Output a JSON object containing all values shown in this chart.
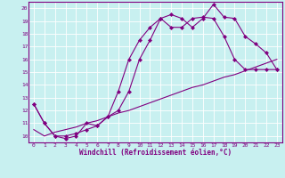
{
  "line1_x": [
    0,
    1,
    2,
    3,
    4,
    5,
    6,
    7,
    8,
    9,
    10,
    11,
    12,
    13,
    14,
    15,
    16,
    17,
    18,
    19,
    20,
    21,
    22,
    23
  ],
  "line1_y": [
    12.5,
    11.0,
    10.0,
    9.8,
    10.0,
    11.0,
    10.8,
    11.5,
    12.0,
    13.5,
    16.0,
    17.5,
    19.2,
    19.5,
    19.2,
    18.5,
    19.2,
    20.3,
    19.3,
    19.2,
    17.8,
    17.2,
    16.5,
    15.2
  ],
  "line2_x": [
    0,
    1,
    2,
    3,
    4,
    5,
    6,
    7,
    8,
    9,
    10,
    11,
    12,
    13,
    14,
    15,
    16,
    17,
    18,
    19,
    20,
    21,
    22,
    23
  ],
  "line2_y": [
    12.5,
    11.0,
    10.0,
    10.0,
    10.2,
    10.5,
    10.8,
    11.5,
    13.5,
    16.0,
    17.5,
    18.5,
    19.2,
    18.5,
    18.5,
    19.2,
    19.3,
    19.2,
    17.8,
    16.0,
    15.2,
    15.2,
    15.2,
    15.2
  ],
  "line3_x": [
    0,
    1,
    2,
    3,
    4,
    5,
    6,
    7,
    8,
    9,
    10,
    11,
    12,
    13,
    14,
    15,
    16,
    17,
    18,
    19,
    20,
    21,
    22,
    23
  ],
  "line3_y": [
    10.5,
    10.0,
    10.3,
    10.5,
    10.7,
    11.0,
    11.2,
    11.5,
    11.8,
    12.0,
    12.3,
    12.6,
    12.9,
    13.2,
    13.5,
    13.8,
    14.0,
    14.3,
    14.6,
    14.8,
    15.1,
    15.4,
    15.7,
    16.0
  ],
  "line_color": "#800080",
  "bg_color": "#c8f0f0",
  "grid_color": "#ffffff",
  "xlabel": "Windchill (Refroidissement éolien,°C)",
  "xlim": [
    -0.5,
    23.5
  ],
  "ylim": [
    9.5,
    20.5
  ],
  "xticks": [
    0,
    1,
    2,
    3,
    4,
    5,
    6,
    7,
    8,
    9,
    10,
    11,
    12,
    13,
    14,
    15,
    16,
    17,
    18,
    19,
    20,
    21,
    22,
    23
  ],
  "yticks": [
    10,
    11,
    12,
    13,
    14,
    15,
    16,
    17,
    18,
    19,
    20
  ],
  "marker": "D",
  "markersize": 2.0,
  "linewidth": 0.8,
  "xlabel_fontsize": 5.5,
  "tick_fontsize": 4.5
}
